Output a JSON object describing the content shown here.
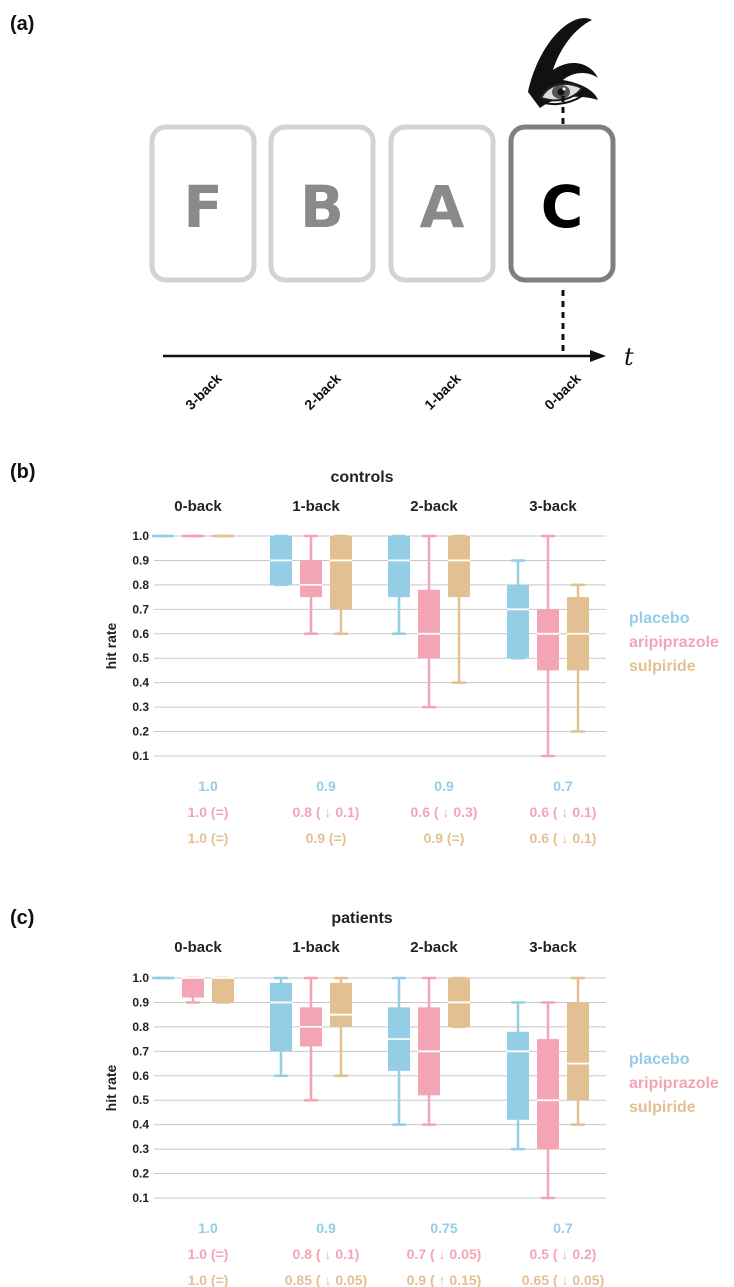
{
  "colors": {
    "placebo": "#93cde6",
    "aripiprazole": "#f4a5b5",
    "sulpiride": "#e2c091"
  },
  "panel_a": {
    "label": "(a)",
    "cards": [
      {
        "letter": "F",
        "state": "faded"
      },
      {
        "letter": "B",
        "state": "faded"
      },
      {
        "letter": "A",
        "state": "faded"
      },
      {
        "letter": "C",
        "state": "current"
      }
    ],
    "axis_labels": [
      "3-back",
      "2-back",
      "1-back",
      "0-back"
    ],
    "time_label": "t",
    "eye_icon": "eye-icon"
  },
  "chart_data": [
    {
      "type": "box",
      "panel_label": "(b)",
      "title": "controls",
      "ylabel": "hit rate",
      "ylim": [
        0.1,
        1.0
      ],
      "yticks": [
        "0.1",
        "0.2",
        "0.3",
        "0.4",
        "0.5",
        "0.6",
        "0.7",
        "0.8",
        "0.9",
        "1.0"
      ],
      "categories": [
        "0-back",
        "1-back",
        "2-back",
        "3-back"
      ],
      "series": [
        {
          "name": "placebo",
          "boxes": [
            {
              "min": 1.0,
              "q1": 1.0,
              "median": 1.0,
              "q3": 1.0,
              "max": 1.0
            },
            {
              "min": 0.8,
              "q1": 0.8,
              "median": 0.9,
              "q3": 1.0,
              "max": 1.0
            },
            {
              "min": 0.6,
              "q1": 0.75,
              "median": 0.9,
              "q3": 1.0,
              "max": 1.0
            },
            {
              "min": 0.5,
              "q1": 0.5,
              "median": 0.7,
              "q3": 0.8,
              "max": 0.9
            }
          ]
        },
        {
          "name": "aripiprazole",
          "boxes": [
            {
              "min": 1.0,
              "q1": 1.0,
              "median": 1.0,
              "q3": 1.0,
              "max": 1.0
            },
            {
              "min": 0.6,
              "q1": 0.75,
              "median": 0.8,
              "q3": 0.9,
              "max": 1.0
            },
            {
              "min": 0.3,
              "q1": 0.5,
              "median": 0.6,
              "q3": 0.78,
              "max": 1.0
            },
            {
              "min": 0.1,
              "q1": 0.45,
              "median": 0.6,
              "q3": 0.7,
              "max": 1.0
            }
          ]
        },
        {
          "name": "sulpiride",
          "boxes": [
            {
              "min": 1.0,
              "q1": 1.0,
              "median": 1.0,
              "q3": 1.0,
              "max": 1.0
            },
            {
              "min": 0.6,
              "q1": 0.7,
              "median": 0.9,
              "q3": 1.0,
              "max": 1.0
            },
            {
              "min": 0.4,
              "q1": 0.75,
              "median": 0.9,
              "q3": 1.0,
              "max": 1.0
            },
            {
              "min": 0.2,
              "q1": 0.45,
              "median": 0.6,
              "q3": 0.75,
              "max": 0.8
            }
          ]
        }
      ],
      "summary": [
        [
          "1.0",
          "0.9",
          "0.9",
          "0.7"
        ],
        [
          "1.0 (=)",
          "0.8 ( ↓ 0.1)",
          "0.6 ( ↓ 0.3)",
          "0.6 ( ↓ 0.1)"
        ],
        [
          "1.0 (=)",
          "0.9 (=)",
          "0.9 (=)",
          "0.6 ( ↓ 0.1)"
        ]
      ]
    },
    {
      "type": "box",
      "panel_label": "(c)",
      "title": "patients",
      "ylabel": "hit rate",
      "ylim": [
        0.1,
        1.0
      ],
      "yticks": [
        "0.1",
        "0.2",
        "0.3",
        "0.4",
        "0.5",
        "0.6",
        "0.7",
        "0.8",
        "0.9",
        "1.0"
      ],
      "categories": [
        "0-back",
        "1-back",
        "2-back",
        "3-back"
      ],
      "series": [
        {
          "name": "placebo",
          "boxes": [
            {
              "min": 1.0,
              "q1": 1.0,
              "median": 1.0,
              "q3": 1.0,
              "max": 1.0
            },
            {
              "min": 0.6,
              "q1": 0.7,
              "median": 0.9,
              "q3": 0.98,
              "max": 1.0
            },
            {
              "min": 0.4,
              "q1": 0.62,
              "median": 0.75,
              "q3": 0.88,
              "max": 1.0
            },
            {
              "min": 0.3,
              "q1": 0.42,
              "median": 0.7,
              "q3": 0.78,
              "max": 0.9
            }
          ]
        },
        {
          "name": "aripiprazole",
          "boxes": [
            {
              "min": 0.9,
              "q1": 0.92,
              "median": 1.0,
              "q3": 1.0,
              "max": 1.0
            },
            {
              "min": 0.5,
              "q1": 0.72,
              "median": 0.8,
              "q3": 0.88,
              "max": 1.0
            },
            {
              "min": 0.4,
              "q1": 0.52,
              "median": 0.7,
              "q3": 0.88,
              "max": 1.0
            },
            {
              "min": 0.1,
              "q1": 0.3,
              "median": 0.5,
              "q3": 0.75,
              "max": 0.9
            }
          ]
        },
        {
          "name": "sulpiride",
          "boxes": [
            {
              "min": 0.9,
              "q1": 0.9,
              "median": 1.0,
              "q3": 1.0,
              "max": 1.0
            },
            {
              "min": 0.6,
              "q1": 0.8,
              "median": 0.85,
              "q3": 0.98,
              "max": 1.0
            },
            {
              "min": 0.8,
              "q1": 0.8,
              "median": 0.9,
              "q3": 1.0,
              "max": 1.0
            },
            {
              "min": 0.4,
              "q1": 0.5,
              "median": 0.65,
              "q3": 0.9,
              "max": 1.0
            }
          ]
        }
      ],
      "summary": [
        [
          "1.0",
          "0.9",
          "0.75",
          "0.7"
        ],
        [
          "1.0 (=)",
          "0.8 ( ↓ 0.1)",
          "0.7 ( ↓ 0.05)",
          "0.5 ( ↓ 0.2)"
        ],
        [
          "1.0 (=)",
          "0.85 ( ↓ 0.05)",
          "0.9 ( ↑ 0.15)",
          "0.65 ( ↓ 0.05)"
        ]
      ]
    }
  ]
}
